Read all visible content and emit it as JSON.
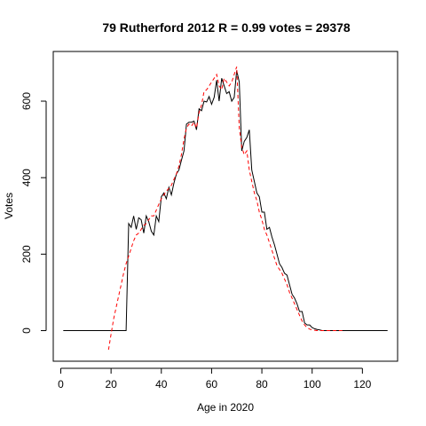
{
  "chart_data": {
    "type": "line",
    "title": "79 Rutherford 2012 R = 0.99 votes = 29378",
    "xlabel": "Age in 2020",
    "ylabel": "Votes",
    "xlim": [
      -3,
      134
    ],
    "ylim": [
      -80,
      730
    ],
    "xticks": [
      0,
      20,
      40,
      60,
      80,
      100,
      120
    ],
    "yticks": [
      0,
      200,
      400,
      600
    ],
    "grid": false,
    "series": [
      {
        "style": "solid",
        "color": "#000000",
        "x": [
          1,
          2,
          3,
          4,
          5,
          6,
          7,
          8,
          9,
          10,
          11,
          12,
          13,
          14,
          15,
          16,
          17,
          18,
          19,
          20,
          21,
          22,
          23,
          24,
          25,
          26,
          27,
          28,
          29,
          30,
          31,
          32,
          33,
          34,
          35,
          36,
          37,
          38,
          39,
          40,
          41,
          42,
          43,
          44,
          45,
          46,
          47,
          48,
          49,
          50,
          51,
          52,
          53,
          54,
          55,
          56,
          57,
          58,
          59,
          60,
          61,
          62,
          63,
          64,
          65,
          66,
          67,
          68,
          69,
          70,
          71,
          72,
          73,
          74,
          75,
          76,
          77,
          78,
          79,
          80,
          81,
          82,
          83,
          84,
          85,
          86,
          87,
          88,
          89,
          90,
          91,
          92,
          93,
          94,
          95,
          96,
          97,
          98,
          99,
          100,
          101,
          102,
          103,
          104,
          105,
          106,
          107,
          108,
          109,
          110,
          111,
          112,
          113,
          114,
          115,
          116,
          117,
          118,
          119,
          120,
          121,
          122,
          123,
          124,
          125,
          126,
          127,
          128,
          129,
          130
        ],
        "y": [
          0,
          0,
          0,
          0,
          0,
          0,
          0,
          0,
          0,
          0,
          0,
          0,
          0,
          0,
          0,
          0,
          0,
          0,
          0,
          0,
          0,
          0,
          0,
          0,
          0,
          0,
          280,
          270,
          300,
          265,
          295,
          290,
          255,
          300,
          285,
          260,
          250,
          300,
          285,
          350,
          360,
          345,
          375,
          355,
          385,
          410,
          420,
          445,
          470,
          540,
          545,
          545,
          548,
          525,
          580,
          575,
          600,
          598,
          612,
          592,
          610,
          655,
          600,
          660,
          640,
          620,
          625,
          600,
          610,
          680,
          650,
          470,
          495,
          505,
          525,
          420,
          390,
          360,
          350,
          310,
          310,
          265,
          270,
          245,
          225,
          200,
          175,
          165,
          150,
          145,
          120,
          95,
          85,
          70,
          50,
          50,
          20,
          15,
          15,
          8,
          5,
          3,
          2,
          0,
          0,
          0,
          0,
          0,
          0,
          0,
          0,
          0,
          0,
          0,
          0,
          0,
          0,
          0,
          0,
          0,
          0,
          0,
          0,
          0,
          0,
          0,
          0,
          0,
          0,
          0
        ]
      },
      {
        "style": "dashed",
        "color": "#ff0000",
        "x": [
          19,
          20,
          21,
          22,
          23,
          24,
          25,
          26,
          27,
          28,
          29,
          30,
          31,
          32,
          33,
          34,
          35,
          36,
          37,
          38,
          39,
          40,
          41,
          42,
          43,
          44,
          45,
          46,
          47,
          48,
          49,
          50,
          51,
          52,
          53,
          54,
          55,
          56,
          57,
          58,
          59,
          60,
          61,
          62,
          63,
          64,
          65,
          66,
          67,
          68,
          69,
          70,
          71,
          72,
          73,
          74,
          75,
          76,
          77,
          78,
          79,
          80,
          81,
          82,
          83,
          84,
          85,
          86,
          87,
          88,
          89,
          90,
          91,
          92,
          93,
          94,
          95,
          96,
          97,
          98,
          99,
          100,
          101,
          102,
          103,
          104,
          105,
          106,
          107,
          108,
          109,
          110,
          111,
          112
        ],
        "y": [
          -50,
          -10,
          30,
          60,
          90,
          120,
          150,
          175,
          195,
          215,
          235,
          250,
          255,
          265,
          275,
          280,
          290,
          300,
          300,
          315,
          330,
          345,
          355,
          365,
          372,
          380,
          395,
          410,
          430,
          460,
          500,
          530,
          540,
          535,
          545,
          530,
          570,
          590,
          625,
          630,
          640,
          650,
          660,
          670,
          640,
          630,
          660,
          650,
          640,
          650,
          670,
          690,
          530,
          480,
          460,
          470,
          420,
          390,
          360,
          340,
          310,
          290,
          265,
          250,
          230,
          210,
          190,
          170,
          160,
          150,
          135,
          120,
          100,
          85,
          70,
          55,
          40,
          25,
          15,
          8,
          4,
          2,
          1,
          0,
          0,
          0,
          0,
          0,
          0,
          0,
          0,
          0,
          0,
          0
        ]
      }
    ]
  }
}
